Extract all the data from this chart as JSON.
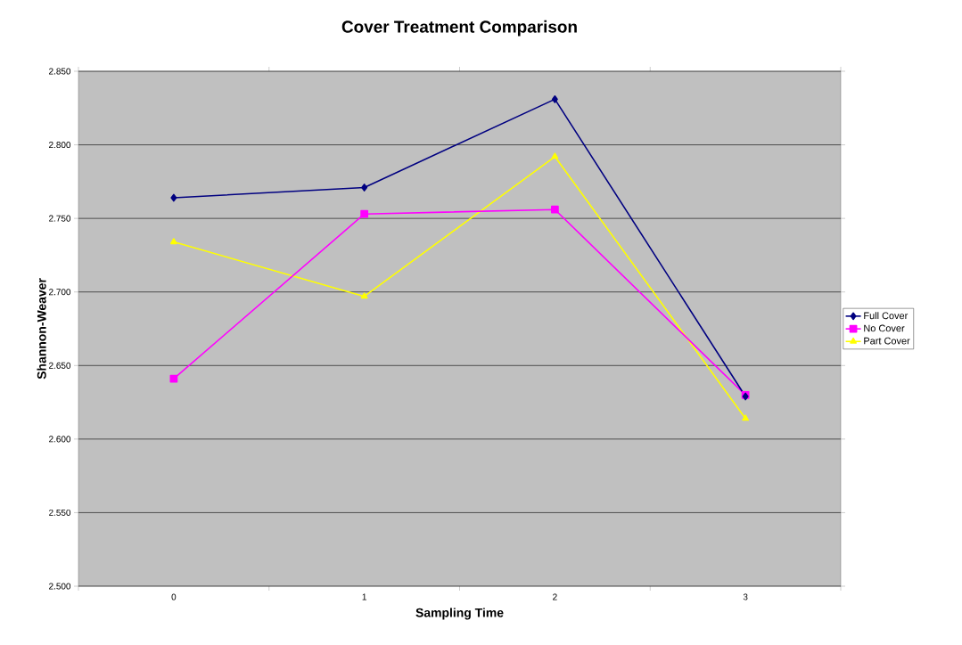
{
  "chart_data": {
    "type": "line",
    "title": "Cover Treatment Comparison",
    "xlabel": "Sampling Time",
    "ylabel": "Shannon-Weaver",
    "categories": [
      "0",
      "1",
      "2",
      "3"
    ],
    "series": [
      {
        "name": "Full Cover",
        "color": "#000080",
        "marker": "diamond",
        "values": [
          2.764,
          2.771,
          2.831,
          2.629
        ]
      },
      {
        "name": "No Cover",
        "color": "#ff00ff",
        "marker": "square",
        "values": [
          2.641,
          2.753,
          2.756,
          2.63
        ]
      },
      {
        "name": "Part Cover",
        "color": "#ffff00",
        "marker": "triangle",
        "values": [
          2.734,
          2.697,
          2.792,
          2.614
        ]
      }
    ],
    "ylim": [
      2.5,
      2.85
    ],
    "yticks": [
      {
        "value": 2.5,
        "label": "2.500"
      },
      {
        "value": 2.55,
        "label": "2.550"
      },
      {
        "value": 2.6,
        "label": "2.600"
      },
      {
        "value": 2.65,
        "label": "2.650"
      },
      {
        "value": 2.7,
        "label": "2.700"
      },
      {
        "value": 2.75,
        "label": "2.750"
      },
      {
        "value": 2.8,
        "label": "2.800"
      },
      {
        "value": 2.85,
        "label": "2.850"
      }
    ],
    "grid": "y",
    "legend": "right",
    "line_style": "solid"
  }
}
